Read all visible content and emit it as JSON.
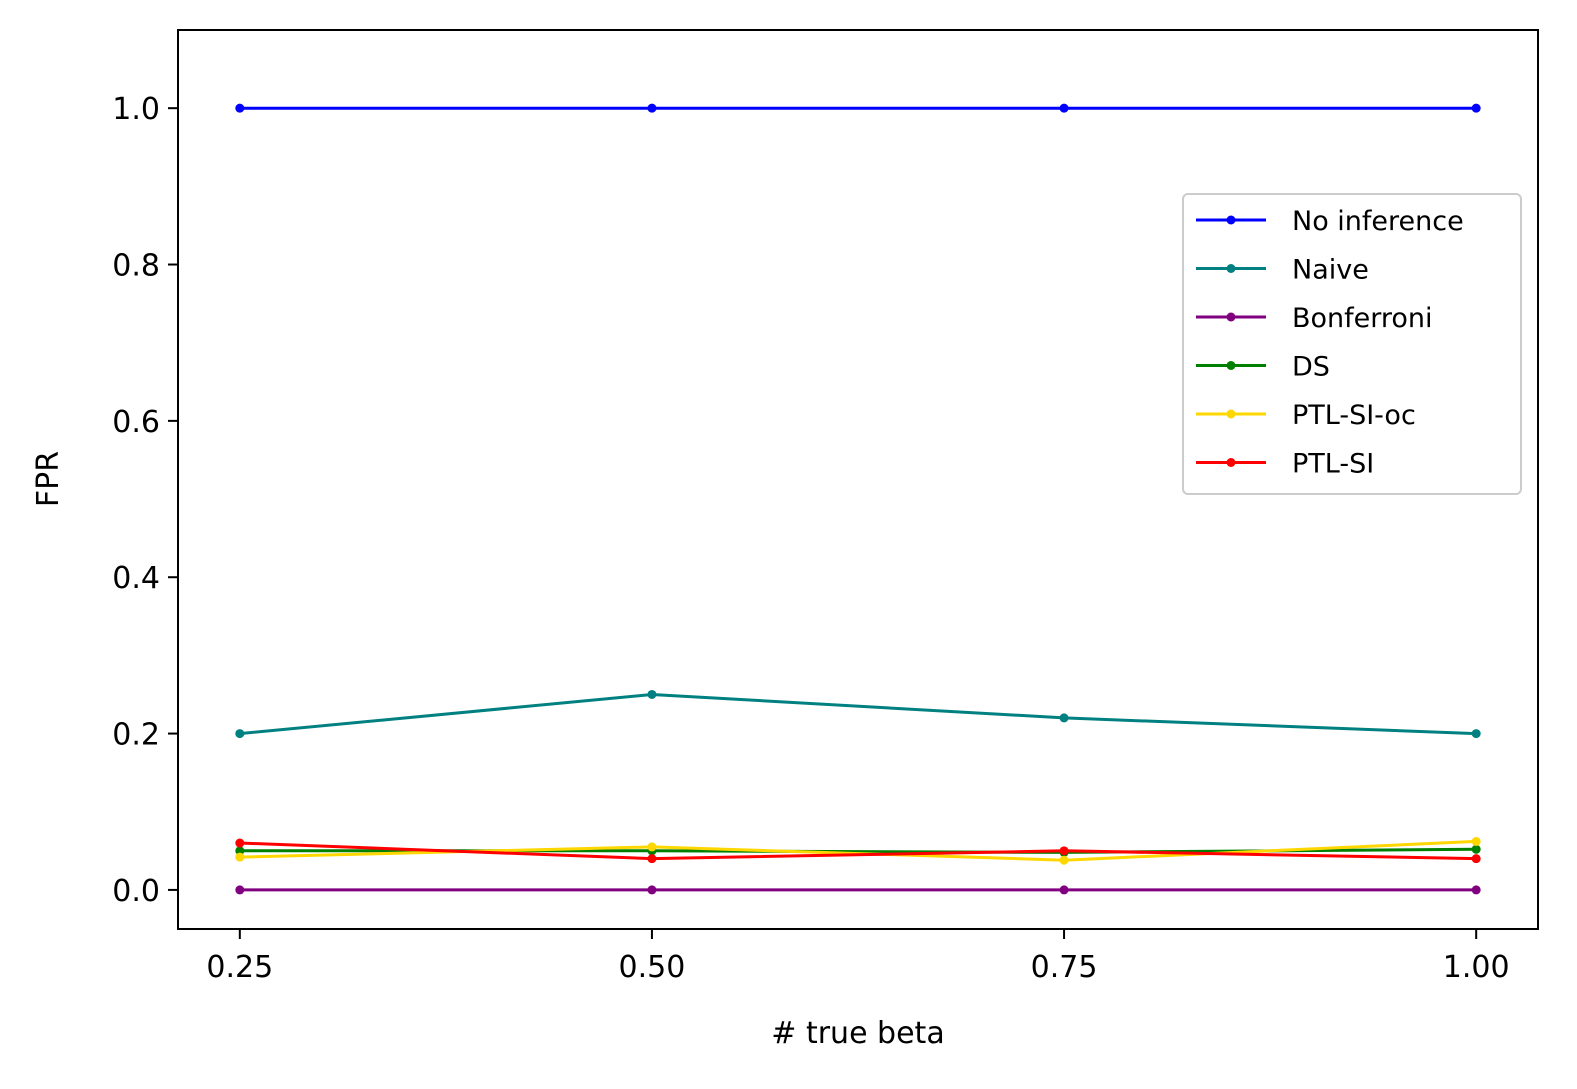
{
  "chart_data": {
    "type": "line",
    "title": "",
    "xlabel": "# true beta",
    "ylabel": "FPR",
    "x": [
      0.25,
      0.5,
      0.75,
      1.0
    ],
    "x_tick_labels": [
      "0.25",
      "0.50",
      "0.75",
      "1.00"
    ],
    "y_ticks": [
      0.0,
      0.2,
      0.4,
      0.6,
      0.8,
      1.0
    ],
    "y_tick_labels": [
      "0.0",
      "0.2",
      "0.4",
      "0.6",
      "0.8",
      "1.0"
    ],
    "xlim": [
      0.2125,
      1.0375
    ],
    "ylim": [
      -0.05,
      1.1
    ],
    "grid": false,
    "legend_position": "center-right",
    "series": [
      {
        "name": "No inference",
        "color": "#0000ff",
        "values": [
          1.0,
          1.0,
          1.0,
          1.0
        ]
      },
      {
        "name": "Naive",
        "color": "#008080",
        "values": [
          0.2,
          0.25,
          0.22,
          0.2
        ]
      },
      {
        "name": "Bonferroni",
        "color": "#800080",
        "values": [
          0.0,
          0.0,
          0.0,
          0.0
        ]
      },
      {
        "name": "DS",
        "color": "#008000",
        "values": [
          0.05,
          0.05,
          0.048,
          0.052
        ]
      },
      {
        "name": "PTL-SI-oc",
        "color": "#ffd700",
        "values": [
          0.042,
          0.055,
          0.038,
          0.062
        ]
      },
      {
        "name": "PTL-SI",
        "color": "#ff0000",
        "values": [
          0.06,
          0.04,
          0.05,
          0.04
        ]
      }
    ]
  }
}
